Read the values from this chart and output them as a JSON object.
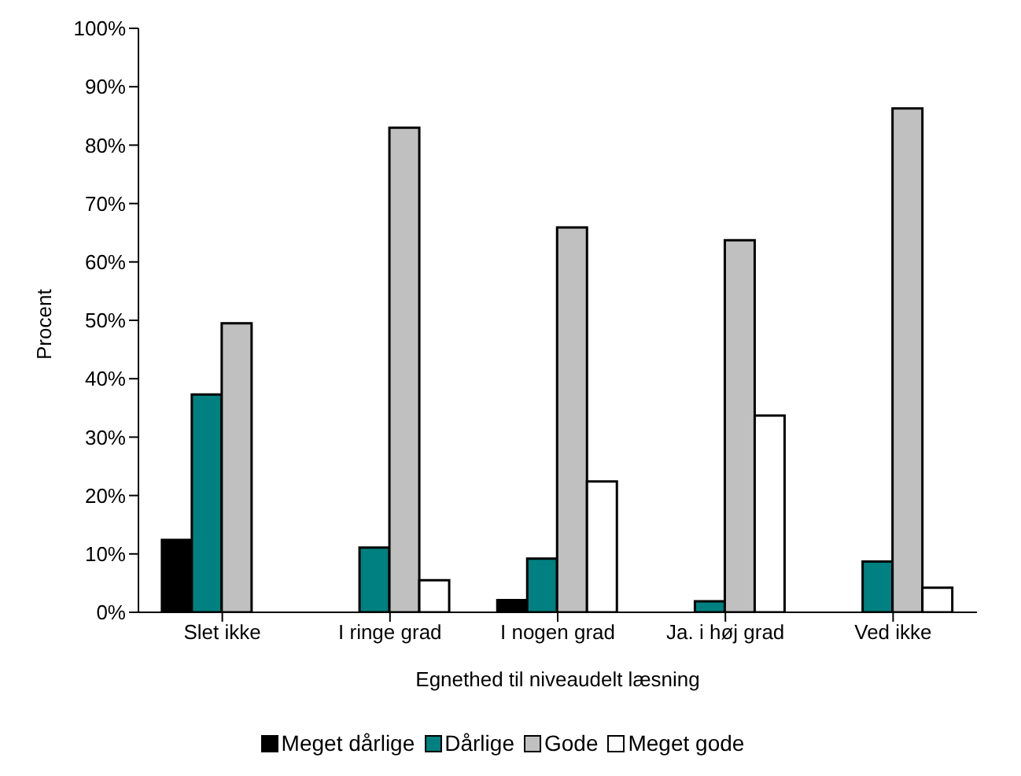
{
  "chart_data": {
    "type": "bar",
    "xlabel": "Egnethed til niveaudelt læsning",
    "ylabel": "Procent",
    "categories": [
      "Slet ikke",
      "I ringe grad",
      "I nogen grad",
      "Ja. i høj grad",
      "Ved ikke"
    ],
    "series": [
      {
        "name": "Meget dårlige",
        "color": "#000000",
        "values": [
          12.4,
          0,
          2.1,
          0,
          0
        ]
      },
      {
        "name": "Dårlige",
        "color": "#008080",
        "values": [
          37.3,
          11.1,
          9.2,
          1.9,
          8.7
        ]
      },
      {
        "name": "Gode",
        "color": "#c0c0c0",
        "values": [
          49.5,
          83.0,
          65.9,
          63.7,
          86.3
        ]
      },
      {
        "name": "Meget gode",
        "color": "#ffffff",
        "values": [
          0,
          5.5,
          22.4,
          33.7,
          4.2
        ]
      }
    ],
    "ylim": [
      0,
      100
    ],
    "yticks": [
      {
        "value": 0,
        "label": "0%"
      },
      {
        "value": 10,
        "label": "10%"
      },
      {
        "value": 20,
        "label": "20%"
      },
      {
        "value": 30,
        "label": "30%"
      },
      {
        "value": 40,
        "label": "40%"
      },
      {
        "value": 50,
        "label": "50%"
      },
      {
        "value": 60,
        "label": "60%"
      },
      {
        "value": 70,
        "label": "70%"
      },
      {
        "value": 80,
        "label": "80%"
      },
      {
        "value": 90,
        "label": "90%"
      },
      {
        "value": 100,
        "label": "100%"
      }
    ],
    "grid": false,
    "legend": "bottom"
  }
}
